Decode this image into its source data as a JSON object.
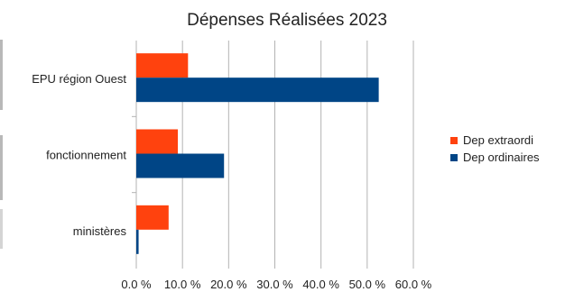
{
  "chart_data": {
    "type": "bar",
    "orientation": "horizontal",
    "title": "Dépenses Réalisées 2023",
    "categories": [
      "EPU région Ouest",
      "fonctionnement",
      "ministères"
    ],
    "series": [
      {
        "name": "Dep extraordi",
        "color": "#ff420e",
        "values": [
          11.2,
          9.0,
          7.0
        ]
      },
      {
        "name": "Dep ordinaires",
        "color": "#004586",
        "values": [
          52.5,
          19.0,
          0.5
        ]
      }
    ],
    "xlim": [
      0,
      60
    ],
    "xticks": [
      0,
      10,
      20,
      30,
      40,
      50,
      60
    ],
    "xtick_labels": [
      "0.0 %",
      "10.0 %",
      "20.0 %",
      "30.0 %",
      "40.0 %",
      "50.0 %",
      "60.0 %"
    ],
    "grid": true,
    "legend_position": "right"
  }
}
